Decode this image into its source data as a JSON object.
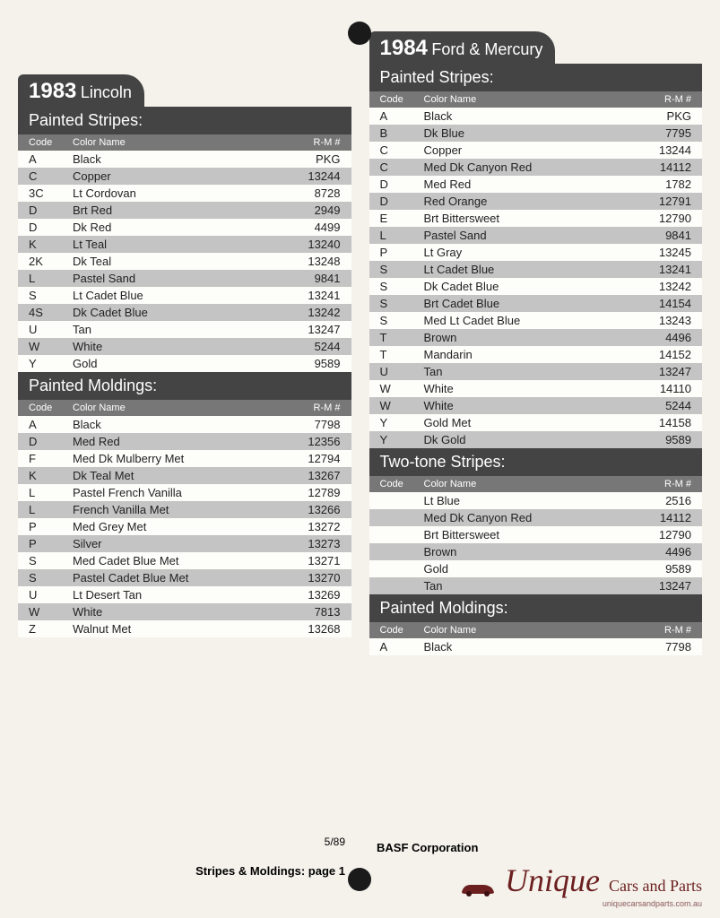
{
  "left": {
    "header_year": "1983",
    "header_make": "Lincoln",
    "sections": [
      {
        "title": "Painted Stripes:",
        "header_code": "Code",
        "header_name": "Color Name",
        "header_rm": "R-M #",
        "rows": [
          {
            "code": "A",
            "name": "Black",
            "rm": "PKG"
          },
          {
            "code": "C",
            "name": "Copper",
            "rm": "13244"
          },
          {
            "code": "3C",
            "name": "Lt Cordovan",
            "rm": "8728"
          },
          {
            "code": "D",
            "name": "Brt Red",
            "rm": "2949"
          },
          {
            "code": "D",
            "name": "Dk Red",
            "rm": "4499"
          },
          {
            "code": "K",
            "name": "Lt Teal",
            "rm": "13240"
          },
          {
            "code": "2K",
            "name": "Dk Teal",
            "rm": "13248"
          },
          {
            "code": "L",
            "name": "Pastel Sand",
            "rm": "9841"
          },
          {
            "code": "S",
            "name": "Lt Cadet Blue",
            "rm": "13241"
          },
          {
            "code": "4S",
            "name": "Dk Cadet Blue",
            "rm": "13242"
          },
          {
            "code": "U",
            "name": "Tan",
            "rm": "13247"
          },
          {
            "code": "W",
            "name": "White",
            "rm": "5244"
          },
          {
            "code": "Y",
            "name": "Gold",
            "rm": "9589"
          }
        ]
      },
      {
        "title": "Painted Moldings:",
        "header_code": "Code",
        "header_name": "Color Name",
        "header_rm": "R-M #",
        "rows": [
          {
            "code": "A",
            "name": "Black",
            "rm": "7798"
          },
          {
            "code": "D",
            "name": "Med Red",
            "rm": "12356"
          },
          {
            "code": "F",
            "name": "Med Dk Mulberry Met",
            "rm": "12794"
          },
          {
            "code": "K",
            "name": "Dk Teal Met",
            "rm": "13267"
          },
          {
            "code": "L",
            "name": "Pastel French Vanilla",
            "rm": "12789"
          },
          {
            "code": "L",
            "name": "French Vanilla Met",
            "rm": "13266"
          },
          {
            "code": "P",
            "name": "Med Grey Met",
            "rm": "13272"
          },
          {
            "code": "P",
            "name": "Silver",
            "rm": "13273"
          },
          {
            "code": "S",
            "name": "Med Cadet Blue Met",
            "rm": "13271"
          },
          {
            "code": "S",
            "name": "Pastel Cadet Blue Met",
            "rm": "13270"
          },
          {
            "code": "U",
            "name": "Lt Desert Tan",
            "rm": "13269"
          },
          {
            "code": "W",
            "name": "White",
            "rm": "7813"
          },
          {
            "code": "Z",
            "name": "Walnut Met",
            "rm": "13268"
          }
        ]
      }
    ]
  },
  "right": {
    "header_year": "1984",
    "header_make": "Ford & Mercury",
    "sections": [
      {
        "title": "Painted Stripes:",
        "header_code": "Code",
        "header_name": "Color Name",
        "header_rm": "R-M #",
        "rows": [
          {
            "code": "A",
            "name": "Black",
            "rm": "PKG"
          },
          {
            "code": "B",
            "name": "Dk Blue",
            "rm": "7795"
          },
          {
            "code": "C",
            "name": "Copper",
            "rm": "13244"
          },
          {
            "code": "C",
            "name": "Med Dk Canyon Red",
            "rm": "14112"
          },
          {
            "code": "D",
            "name": "Med Red",
            "rm": "1782"
          },
          {
            "code": "D",
            "name": "Red Orange",
            "rm": "12791"
          },
          {
            "code": "E",
            "name": "Brt Bittersweet",
            "rm": "12790"
          },
          {
            "code": "L",
            "name": "Pastel Sand",
            "rm": "9841"
          },
          {
            "code": "P",
            "name": "Lt Gray",
            "rm": "13245"
          },
          {
            "code": "S",
            "name": "Lt Cadet Blue",
            "rm": "13241"
          },
          {
            "code": "S",
            "name": "Dk Cadet Blue",
            "rm": "13242"
          },
          {
            "code": "S",
            "name": "Brt Cadet Blue",
            "rm": "14154"
          },
          {
            "code": "S",
            "name": "Med Lt Cadet Blue",
            "rm": "13243"
          },
          {
            "code": "T",
            "name": "Brown",
            "rm": "4496"
          },
          {
            "code": "T",
            "name": "Mandarin",
            "rm": "14152"
          },
          {
            "code": "U",
            "name": "Tan",
            "rm": "13247"
          },
          {
            "code": "W",
            "name": "White",
            "rm": "14110"
          },
          {
            "code": "W",
            "name": "White",
            "rm": "5244"
          },
          {
            "code": "Y",
            "name": "Gold Met",
            "rm": "14158"
          },
          {
            "code": "Y",
            "name": "Dk Gold",
            "rm": "9589"
          }
        ]
      },
      {
        "title": "Two-tone Stripes:",
        "header_code": "Code",
        "header_name": "Color Name",
        "header_rm": "R-M #",
        "rows": [
          {
            "code": "",
            "name": "Lt Blue",
            "rm": "2516"
          },
          {
            "code": "",
            "name": "Med Dk Canyon Red",
            "rm": "14112"
          },
          {
            "code": "",
            "name": "Brt Bittersweet",
            "rm": "12790"
          },
          {
            "code": "",
            "name": "Brown",
            "rm": "4496"
          },
          {
            "code": "",
            "name": "Gold",
            "rm": "9589"
          },
          {
            "code": "",
            "name": "Tan",
            "rm": "13247"
          }
        ]
      },
      {
        "title": "Painted Moldings:",
        "header_code": "Code",
        "header_name": "Color Name",
        "header_rm": "R-M #",
        "rows": [
          {
            "code": "A",
            "name": "Black",
            "rm": "7798"
          }
        ]
      }
    ]
  },
  "footer": {
    "date": "5/89",
    "pagelabel": "Stripes & Moldings: page 1",
    "corp": "BASF Corporation"
  },
  "watermark": {
    "big": "Unique",
    "small": "Cars and Parts",
    "url": "uniquecarsandparts.com.au"
  },
  "styles": {
    "row_alt_bg": "#c4c4c4",
    "row_norm_bg": "#fdfdfa",
    "header_bg": "#444",
    "col_header_bg": "#777"
  }
}
